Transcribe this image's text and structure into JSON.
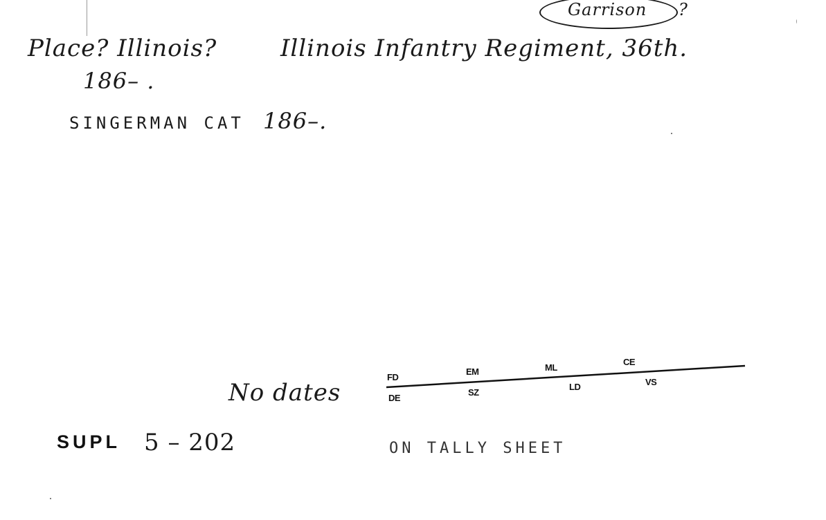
{
  "card": {
    "garrison_note": "Garrison",
    "garrison_q": "?",
    "place_line": "Place? Illinois?",
    "heading": "Illinois Infantry Regiment, 36th.",
    "date_line": "186– .",
    "catalog_label": "SINGERMAN CAT",
    "catalog_date": "186–.",
    "no_dates": "No dates",
    "tally": {
      "top": [
        "FD",
        "EM",
        "ML",
        "CE"
      ],
      "bottom": [
        "DE",
        "SZ",
        "LD",
        "VS"
      ]
    },
    "supl_label": "SUPL",
    "supl_number": "5 – 202",
    "tally_note": "ON TALLY SHEET"
  }
}
